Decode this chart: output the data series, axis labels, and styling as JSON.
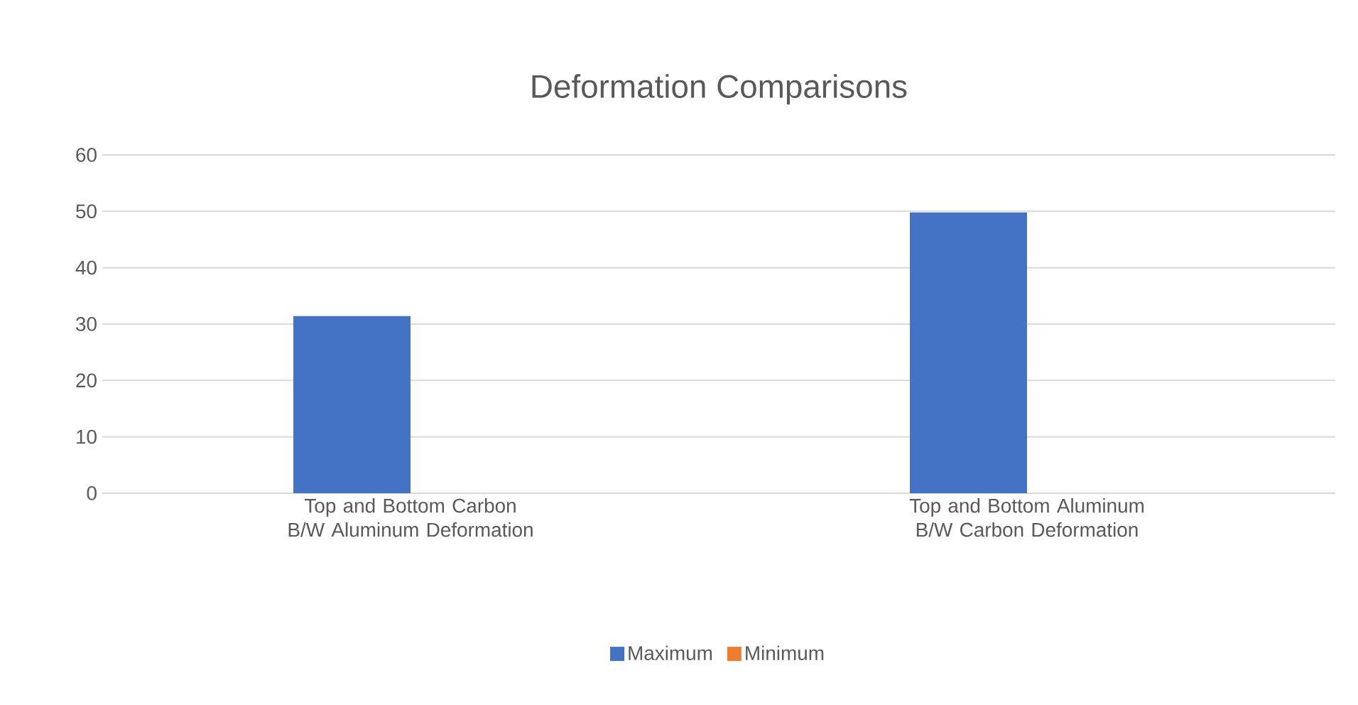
{
  "chart_data": {
    "type": "bar",
    "title": "Deformation Comparisons",
    "categories": [
      "Top and Bottom Carbon B/W Aluminum Deformation",
      "Top and Bottom Aluminum B/W Carbon Deformation"
    ],
    "series": [
      {
        "name": "Maximum",
        "color": "#4472c4",
        "values": [
          31.4,
          49.8
        ]
      },
      {
        "name": "Minimum",
        "color": "#ed7d31",
        "values": [
          0,
          0
        ]
      }
    ],
    "ylim": [
      0,
      60
    ],
    "yticks": [
      0,
      10,
      20,
      30,
      40,
      50,
      60
    ],
    "grid": "y",
    "legend": "bottom"
  }
}
